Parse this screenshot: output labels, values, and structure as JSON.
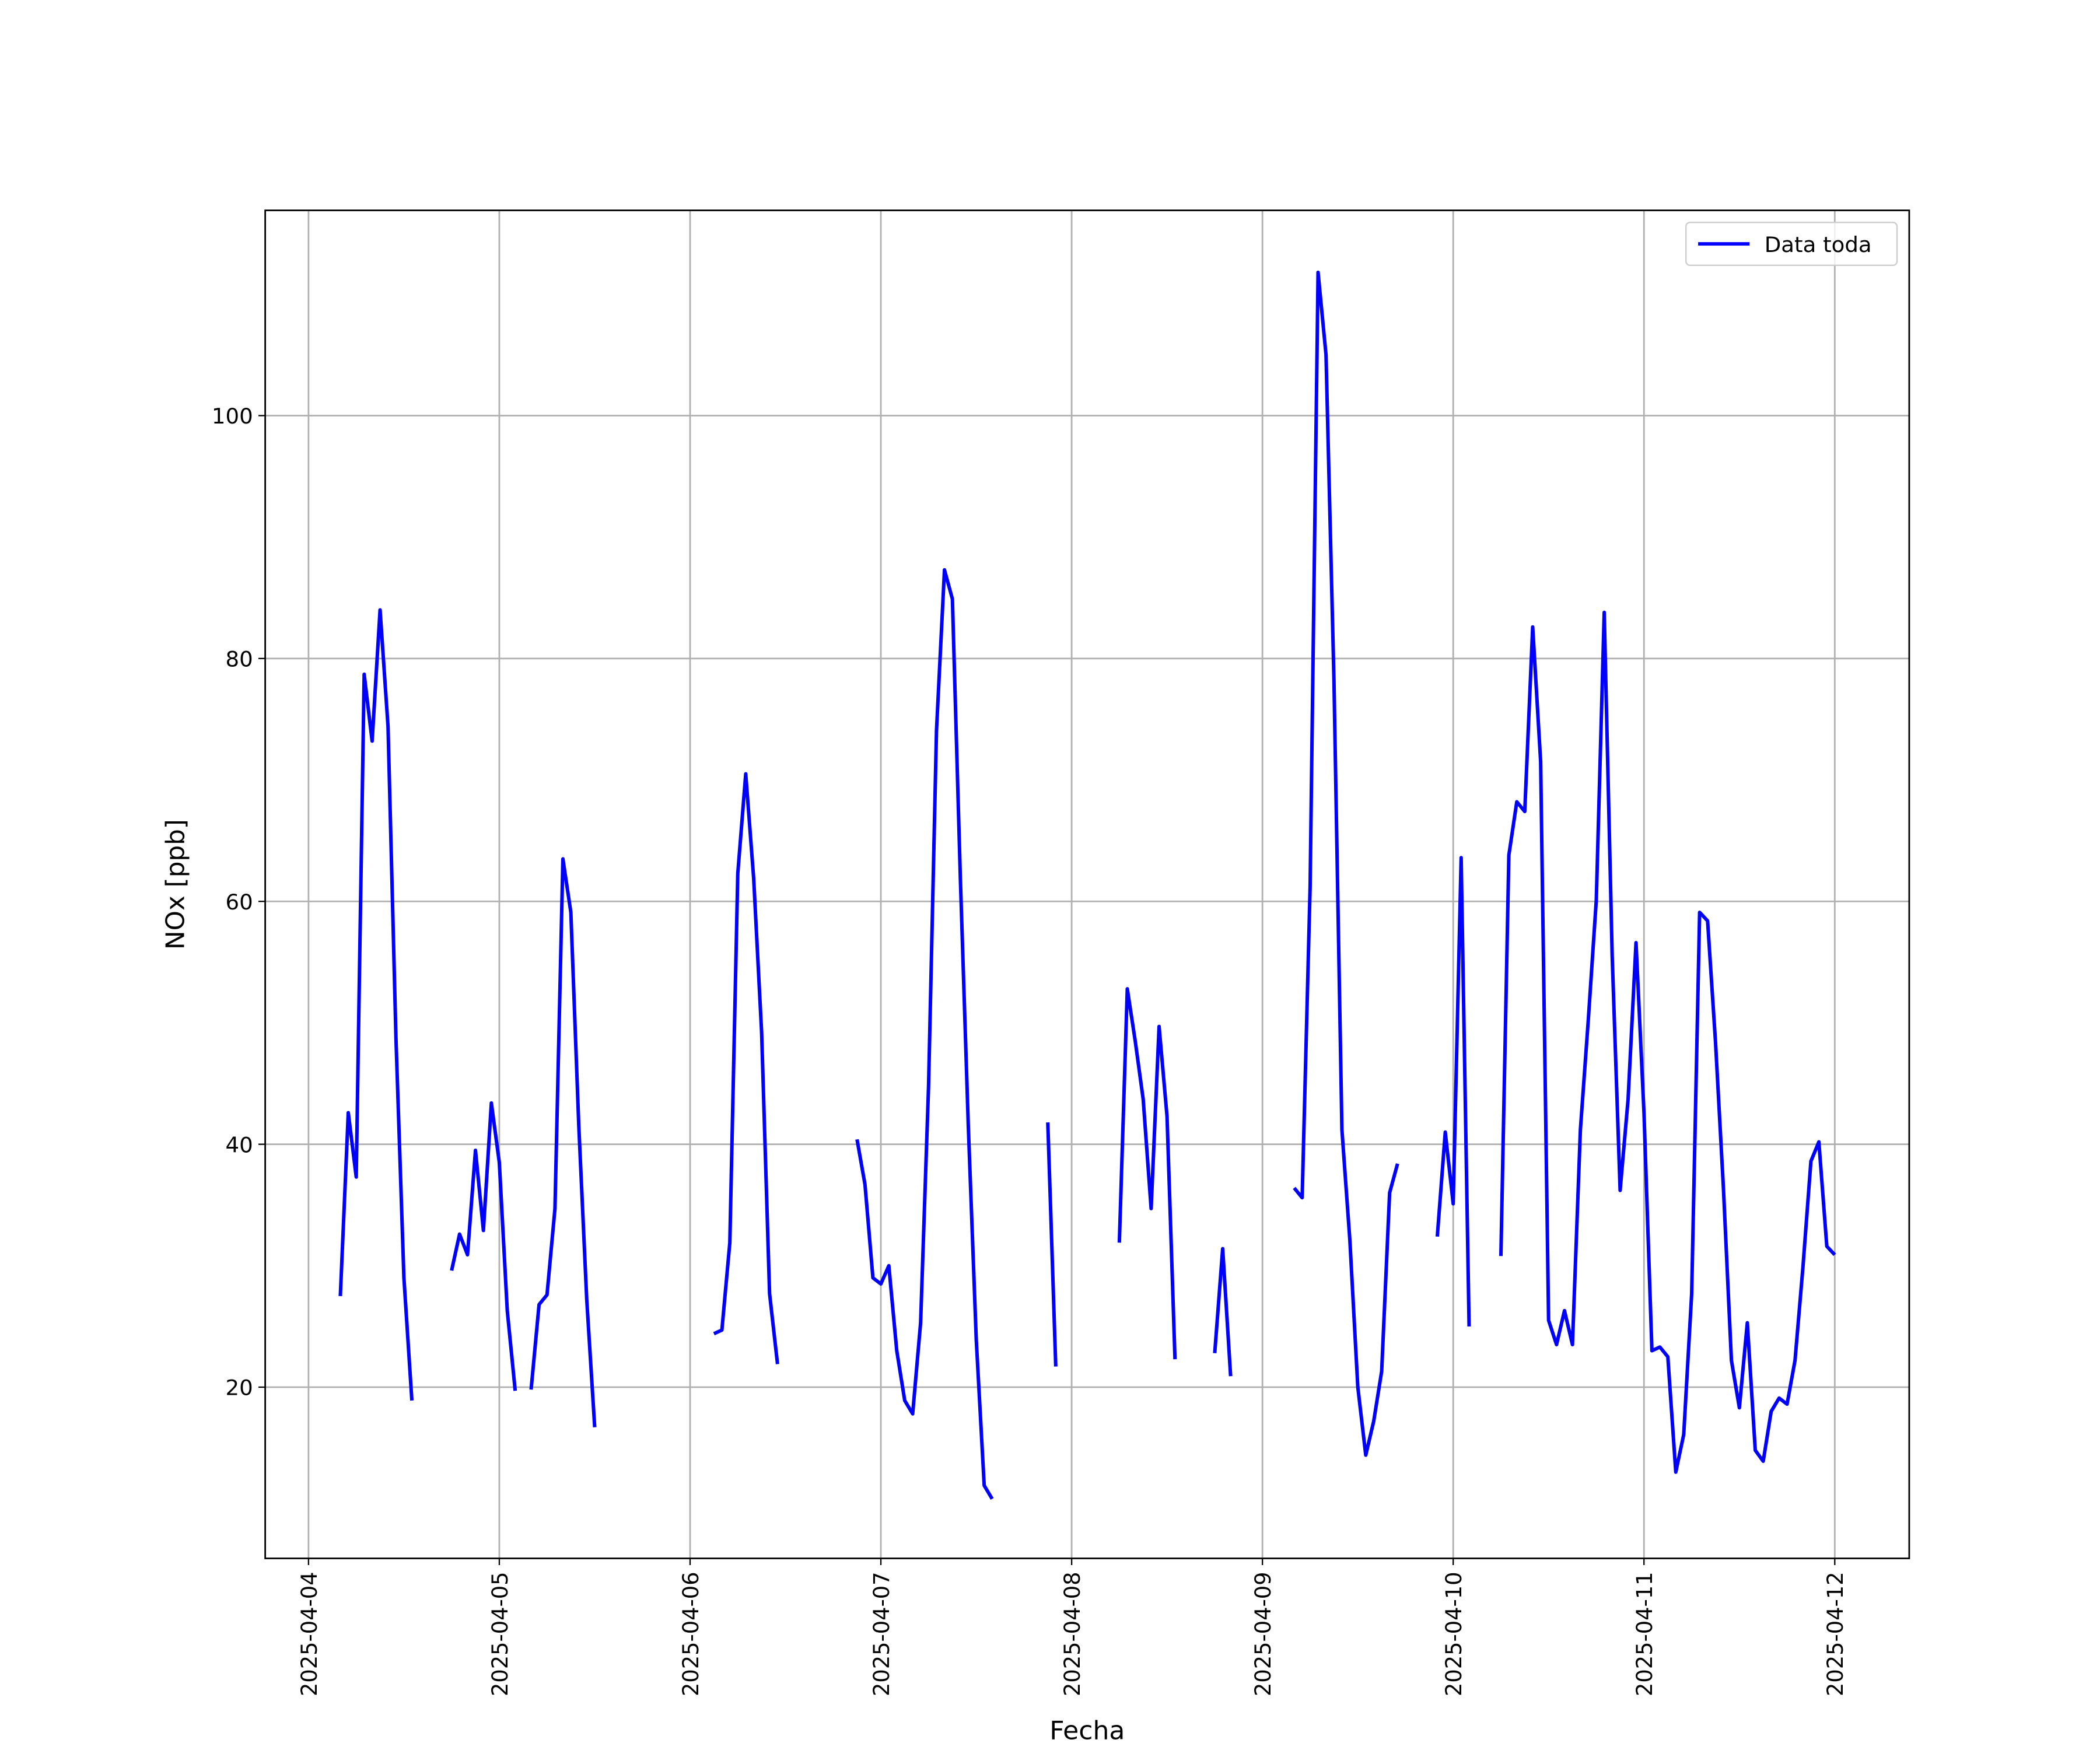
{
  "chart_data": {
    "type": "line",
    "xlabel": "Fecha",
    "ylabel": "NOx [ppb]",
    "x": [
      "2025-04-04T04:00",
      "2025-04-04T05:00",
      "2025-04-04T06:00",
      "2025-04-04T07:00",
      "2025-04-04T08:00",
      "2025-04-04T09:00",
      "2025-04-04T10:00",
      "2025-04-04T11:00",
      "2025-04-04T12:00",
      "2025-04-04T13:00",
      "2025-04-04T14:00",
      "2025-04-04T18:00",
      "2025-04-04T19:00",
      "2025-04-04T20:00",
      "2025-04-04T21:00",
      "2025-04-04T22:00",
      "2025-04-04T23:00",
      "2025-04-05T00:00",
      "2025-04-05T01:00",
      "2025-04-05T02:00",
      "2025-04-05T03:00",
      "2025-04-05T04:00",
      "2025-04-05T05:00",
      "2025-04-05T06:00",
      "2025-04-05T07:00",
      "2025-04-05T08:00",
      "2025-04-05T09:00",
      "2025-04-05T10:00",
      "2025-04-05T11:00",
      "2025-04-05T12:00",
      "2025-04-05T13:00",
      "2025-04-06T03:00",
      "2025-04-06T04:00",
      "2025-04-06T05:00",
      "2025-04-06T06:00",
      "2025-04-06T07:00",
      "2025-04-06T08:00",
      "2025-04-06T09:00",
      "2025-04-06T10:00",
      "2025-04-06T11:00",
      "2025-04-06T12:00",
      "2025-04-06T21:00",
      "2025-04-06T22:00",
      "2025-04-06T23:00",
      "2025-04-07T00:00",
      "2025-04-07T01:00",
      "2025-04-07T02:00",
      "2025-04-07T03:00",
      "2025-04-07T04:00",
      "2025-04-07T05:00",
      "2025-04-07T06:00",
      "2025-04-07T07:00",
      "2025-04-07T08:00",
      "2025-04-07T09:00",
      "2025-04-07T10:00",
      "2025-04-07T11:00",
      "2025-04-07T12:00",
      "2025-04-07T13:00",
      "2025-04-07T14:00",
      "2025-04-07T15:00",
      "2025-04-07T21:00",
      "2025-04-07T22:00",
      "2025-04-07T23:00",
      "2025-04-08T06:00",
      "2025-04-08T07:00",
      "2025-04-08T08:00",
      "2025-04-08T09:00",
      "2025-04-08T10:00",
      "2025-04-08T11:00",
      "2025-04-08T12:00",
      "2025-04-08T13:00",
      "2025-04-08T14:00",
      "2025-04-08T18:00",
      "2025-04-08T19:00",
      "2025-04-08T20:00",
      "2025-04-08T21:00",
      "2025-04-09T04:00",
      "2025-04-09T05:00",
      "2025-04-09T06:00",
      "2025-04-09T07:00",
      "2025-04-09T08:00",
      "2025-04-09T09:00",
      "2025-04-09T10:00",
      "2025-04-09T11:00",
      "2025-04-09T12:00",
      "2025-04-09T13:00",
      "2025-04-09T14:00",
      "2025-04-09T15:00",
      "2025-04-09T16:00",
      "2025-04-09T17:00",
      "2025-04-09T18:00",
      "2025-04-09T22:00",
      "2025-04-09T23:00",
      "2025-04-10T00:00",
      "2025-04-10T01:00",
      "2025-04-10T02:00",
      "2025-04-10T03:00",
      "2025-04-10T06:00",
      "2025-04-10T07:00",
      "2025-04-10T08:00",
      "2025-04-10T09:00",
      "2025-04-10T10:00",
      "2025-04-10T11:00",
      "2025-04-10T12:00",
      "2025-04-10T13:00",
      "2025-04-10T14:00",
      "2025-04-10T15:00",
      "2025-04-10T16:00",
      "2025-04-10T17:00",
      "2025-04-10T18:00",
      "2025-04-10T19:00",
      "2025-04-10T20:00",
      "2025-04-10T21:00",
      "2025-04-10T22:00",
      "2025-04-10T23:00",
      "2025-04-11T00:00",
      "2025-04-11T01:00",
      "2025-04-11T02:00",
      "2025-04-11T03:00",
      "2025-04-11T04:00",
      "2025-04-11T05:00",
      "2025-04-11T06:00",
      "2025-04-11T07:00",
      "2025-04-11T08:00",
      "2025-04-11T09:00",
      "2025-04-11T10:00",
      "2025-04-11T11:00",
      "2025-04-11T12:00",
      "2025-04-11T13:00",
      "2025-04-11T14:00",
      "2025-04-11T15:00",
      "2025-04-11T16:00",
      "2025-04-11T17:00",
      "2025-04-11T18:00",
      "2025-04-11T19:00",
      "2025-04-11T20:00",
      "2025-04-11T21:00",
      "2025-04-11T22:00",
      "2025-04-11T23:00",
      "2025-04-12T00:00"
    ],
    "series": [
      {
        "name": "Data toda",
        "color": "#0000ff",
        "values": [
          27.5,
          42.6,
          37.3,
          78.7,
          73.2,
          84.0,
          74.4,
          48.7,
          29.0,
          18.9,
          null,
          29.6,
          32.6,
          30.9,
          39.5,
          32.9,
          43.4,
          38.5,
          26.3,
          19.7,
          null,
          19.8,
          26.8,
          27.6,
          34.7,
          63.5,
          59.1,
          41.5,
          27.2,
          16.7,
          null,
          24.4,
          24.7,
          31.9,
          62.3,
          70.5,
          61.9,
          49.2,
          27.7,
          21.9,
          null,
          40.4,
          36.7,
          29.0,
          28.5,
          30.0,
          23.0,
          18.9,
          17.8,
          25.3,
          44.8,
          74.1,
          87.3,
          84.9,
          61.9,
          41.5,
          23.9,
          11.9,
          10.8,
          null,
          41.8,
          21.7,
          null,
          31.9,
          52.8,
          48.5,
          43.7,
          34.7,
          49.7,
          42.3,
          22.3,
          null,
          22.8,
          31.4,
          20.9,
          null,
          36.4,
          35.6,
          61.2,
          111.8,
          105.0,
          78.2,
          41.2,
          32.1,
          20.0,
          14.4,
          17.2,
          21.3,
          36.0,
          38.4,
          null,
          32.4,
          41.0,
          35.1,
          63.6,
          25.0,
          null,
          30.8,
          63.8,
          68.2,
          67.4,
          82.6,
          71.5,
          25.5,
          23.5,
          26.3,
          23.5,
          41.2,
          50.3,
          60.1,
          83.8,
          55.5,
          36.2,
          43.7,
          56.6,
          42.6,
          23.0,
          23.3,
          22.5,
          13.0,
          16.1,
          27.7,
          59.1,
          58.4,
          48.4,
          36.3,
          22.2,
          18.3,
          25.3,
          14.8,
          13.9,
          18.0,
          19.1,
          18.6,
          22.2,
          29.9,
          38.6,
          40.2,
          31.6,
          30.9
        ]
      }
    ],
    "xlim": [
      "2025-04-03T18:33",
      "2025-04-12T09:22"
    ],
    "xticks": [
      "2025-04-04",
      "2025-04-05",
      "2025-04-06",
      "2025-04-07",
      "2025-04-08",
      "2025-04-09",
      "2025-04-10",
      "2025-04-11",
      "2025-04-12"
    ],
    "ylim": [
      5.9,
      116.9
    ],
    "yticks": [
      20,
      40,
      60,
      80,
      100
    ],
    "grid": true,
    "legend": "upper right"
  }
}
